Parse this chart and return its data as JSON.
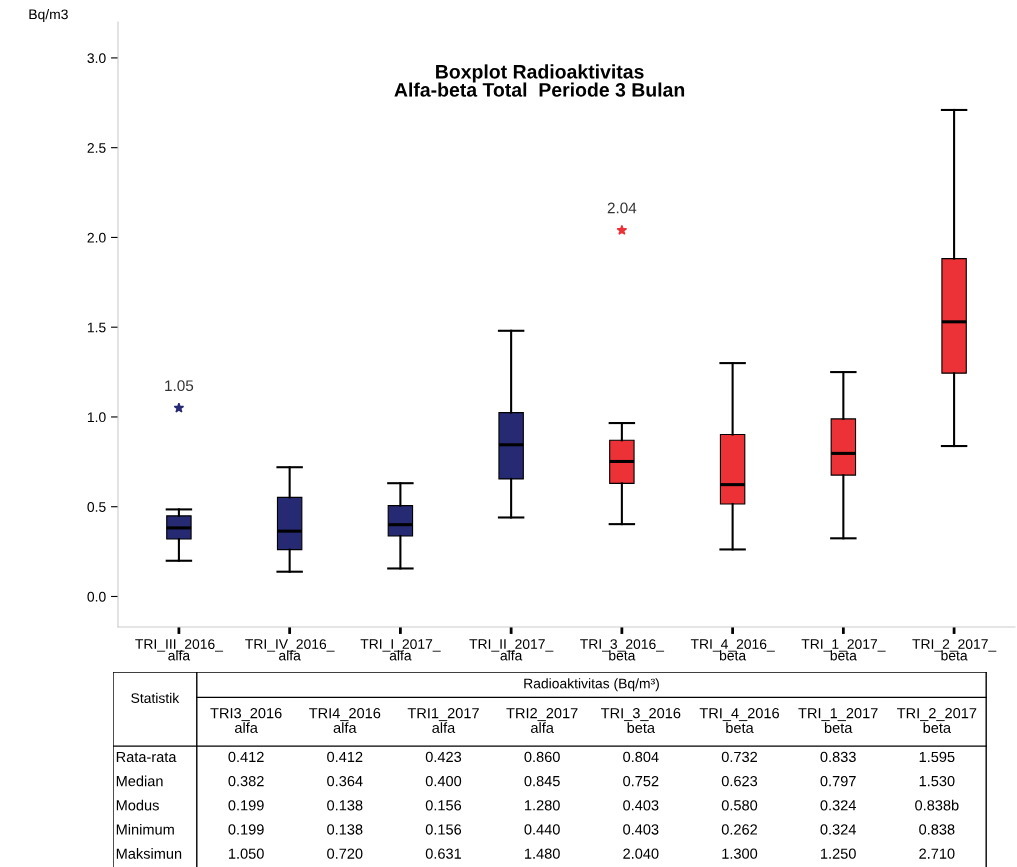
{
  "chart_data": [
    {
      "type": "box",
      "title": "Boxplot Radioaktivitas\nAlfa-beta Total  Periode 3 Bulan",
      "ylabel": "Bq/m3",
      "categories": [
        "TRI_III_2016_\nalfa",
        "TRI_IV_2016_\nalfa",
        "TRI_I_2017_\nalfa",
        "TRI_II_2017_\nalfa",
        "TRI_3_2016_\nbeta",
        "TRI_4_2016_\nbeta",
        "TRI_1_2017_\nbeta",
        "TRI_2_2017_\nbeta"
      ],
      "ylim": [
        -0.17,
        3.2
      ],
      "yticks": [
        {
          "value": 0,
          "label": "0.0"
        },
        {
          "value": 0.5,
          "label": "0.5"
        },
        {
          "value": 1,
          "label": "1.0"
        },
        {
          "value": 1.5,
          "label": "1.5"
        },
        {
          "value": 2,
          "label": "2.0"
        },
        {
          "value": 2.5,
          "label": "2.5"
        },
        {
          "value": 3,
          "label": "3.0"
        }
      ],
      "grid": false,
      "legend": false,
      "marker": "star",
      "series": [
        {
          "color": "#262a73",
          "boxes": [
            {
              "low": 0.199,
              "q1": 0.32,
              "median": 0.382,
              "q3": 0.449,
              "high": 0.485,
              "outliers": [
                1.05
              ]
            },
            {
              "low": 0.138,
              "q1": 0.261,
              "median": 0.364,
              "q3": 0.552,
              "high": 0.72
            },
            {
              "low": 0.156,
              "q1": 0.337,
              "median": 0.4,
              "q3": 0.506,
              "high": 0.631
            },
            {
              "low": 0.44,
              "q1": 0.655,
              "median": 0.845,
              "q3": 1.024,
              "high": 1.48
            },
            null,
            null,
            null,
            null
          ]
        },
        {
          "color": "#ec3237",
          "boxes": [
            null,
            null,
            null,
            null,
            {
              "low": 0.403,
              "q1": 0.63,
              "median": 0.752,
              "q3": 0.87,
              "high": 0.966,
              "outliers": [
                2.04
              ]
            },
            {
              "low": 0.262,
              "q1": 0.515,
              "median": 0.623,
              "q3": 0.902,
              "high": 1.3
            },
            {
              "low": 0.324,
              "q1": 0.676,
              "median": 0.797,
              "q3": 0.989,
              "high": 1.25
            },
            {
              "low": 0.838,
              "q1": 1.244,
              "median": 1.53,
              "q3": 1.882,
              "high": 2.71
            }
          ]
        }
      ],
      "annotations": [
        "1.05",
        "2.04"
      ]
    },
    {
      "type": "other",
      "xlabel": "Radioaktivitas (Bq/m³)",
      "ylabel": "Statistik",
      "categories": [
        "TRI3_2016\nalfa",
        "TRI4_2016\nalfa",
        "TRI1_2017\nalfa",
        "TRI2_2017\nalfa",
        "TRI_3_2016\nbeta",
        "TRI_4_2016\nbeta",
        "TRI_1_2017\nbeta",
        "TRI_2_2017\nbeta"
      ],
      "y_categories": [
        "Rata-rata",
        "Median",
        "Modus",
        "Minimum",
        "Maksimun"
      ],
      "cell_labels": [
        [
          "0.412",
          "0.412",
          "0.423",
          "0.860",
          "0.804",
          "0.732",
          "0.833",
          "1.595"
        ],
        [
          "0.382",
          "0.364",
          "0.400",
          "0.845",
          "0.752",
          "0.623",
          "0.797",
          "1.530"
        ],
        [
          "0.199",
          "0.138",
          "0.156",
          "1.280",
          "0.403",
          "0.580",
          "0.324",
          "0.838b"
        ],
        [
          "0.199",
          "0.138",
          "0.156",
          "0.440",
          "0.403",
          "0.262",
          "0.324",
          "0.838"
        ],
        [
          "1.050",
          "0.720",
          "0.631",
          "1.480",
          "2.040",
          "1.300",
          "1.250",
          "2.710"
        ]
      ]
    }
  ]
}
